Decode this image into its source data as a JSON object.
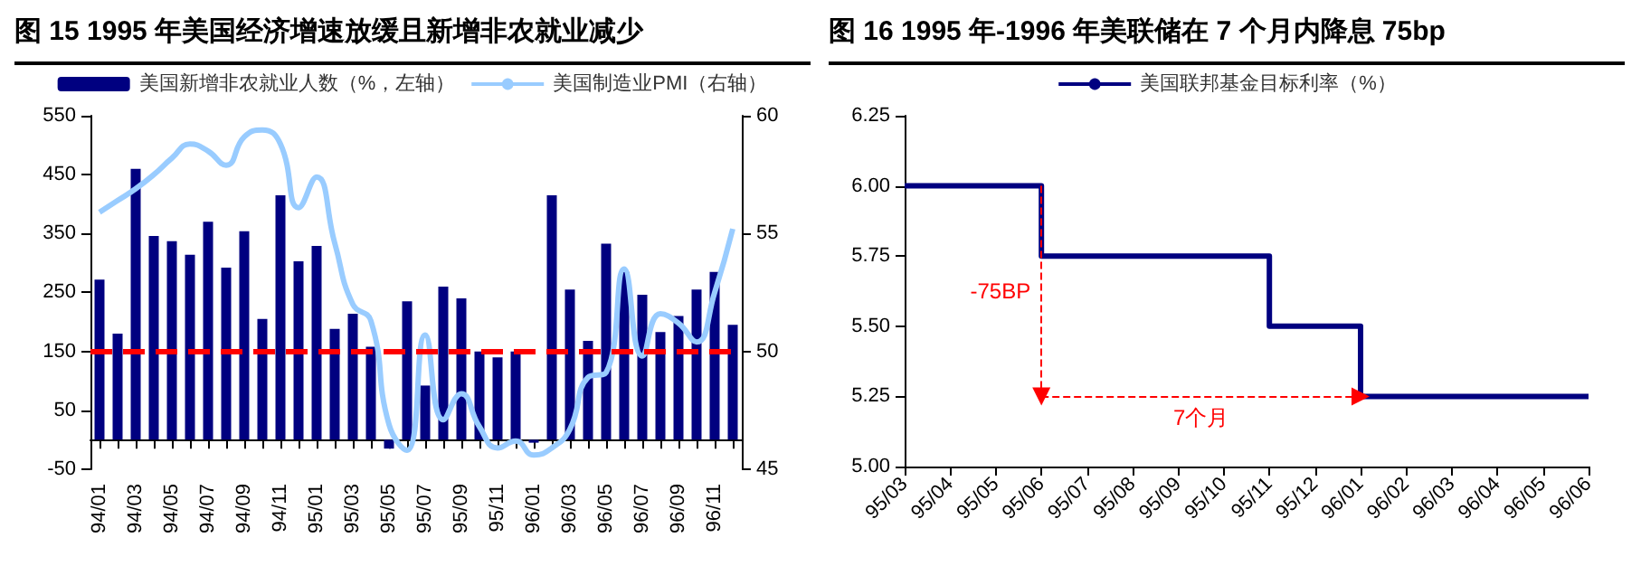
{
  "chart_data": [
    {
      "type": "bar",
      "title": "图 15  1995 年美国经济增速放缓且新增非农就业减少",
      "categories": [
        "94/01",
        null,
        "94/03",
        null,
        "94/05",
        null,
        "94/07",
        null,
        "94/09",
        null,
        "94/11",
        null,
        "95/01",
        null,
        "95/03",
        null,
        "95/05",
        null,
        "95/07",
        null,
        "95/09",
        null,
        "95/11",
        null,
        "96/01",
        null,
        "96/03",
        null,
        "96/05",
        null,
        "96/07",
        null,
        "96/09",
        null,
        "96/11",
        null
      ],
      "series": [
        {
          "name": "美国新增非农就业人数（%，左轴）",
          "type": "bar",
          "color": "#000080",
          "values": [
            272,
            180,
            460,
            346,
            337,
            314,
            370,
            292,
            354,
            205,
            415,
            303,
            329,
            188,
            214,
            158,
            -15,
            235,
            92,
            260,
            240,
            150,
            140,
            150,
            -5,
            415,
            255,
            168,
            333,
            285,
            246,
            183,
            210,
            255,
            285,
            195
          ]
        },
        {
          "name": "美国制造业PMI（右轴）",
          "type": "line",
          "axis": "y2",
          "color": "#99ccff",
          "values": [
            55.9,
            56.4,
            56.9,
            57.5,
            58.2,
            58.8,
            58.5,
            57.9,
            59.1,
            59.4,
            58.8,
            56.1,
            57.4,
            54.6,
            52.0,
            51.3,
            46.9,
            45.8,
            50.7,
            47.1,
            48.2,
            46.8,
            45.9,
            46.2,
            45.6,
            45.9,
            46.7,
            48.9,
            49.1,
            53.5,
            49.8,
            51.6,
            51.2,
            50.4,
            52.5,
            55.2
          ]
        }
      ],
      "ylim": [
        -50,
        550
      ],
      "yticks": [
        -50,
        50,
        150,
        250,
        350,
        450,
        550
      ],
      "y2lim": [
        45,
        60
      ],
      "y2ticks": [
        45,
        50,
        55,
        60
      ],
      "ref_lines": [
        {
          "axis": "y",
          "value": 150,
          "color": "#ff0000",
          "line_style": "dashed"
        }
      ],
      "legend": "top",
      "marker": "none",
      "grid": false
    },
    {
      "type": "step",
      "title": "图 16  1995 年-1996 年美联储在 7 个月内降息 75bp",
      "categories": [
        "95/03",
        "95/04",
        "95/05",
        "95/06",
        "95/07",
        "95/08",
        "95/09",
        "95/10",
        "95/11",
        "95/12",
        "96/01",
        "96/02",
        "96/03",
        "96/04",
        "96/05",
        "96/06"
      ],
      "series": [
        {
          "name": "美国联邦基金目标利率（%）",
          "color": "#000080",
          "values": [
            6.0,
            6.0,
            6.0,
            6.0,
            5.75,
            5.75,
            5.75,
            5.75,
            5.75,
            5.5,
            5.5,
            5.25,
            5.25,
            5.25,
            5.25,
            5.25
          ]
        }
      ],
      "ylim": [
        5.0,
        6.25
      ],
      "yticks": [
        {
          "value": 5.0,
          "label": "5.00"
        },
        {
          "value": 5.25,
          "label": "5.25"
        },
        {
          "value": 5.5,
          "label": "5.50"
        },
        {
          "value": 5.75,
          "label": "5.75"
        },
        {
          "value": 6.0,
          "label": "6.00"
        },
        {
          "value": 6.25,
          "label": "6.25"
        }
      ],
      "annotations": [
        "-75BP",
        "7个月"
      ],
      "legend": "top",
      "marker": "none",
      "grid": false
    }
  ]
}
